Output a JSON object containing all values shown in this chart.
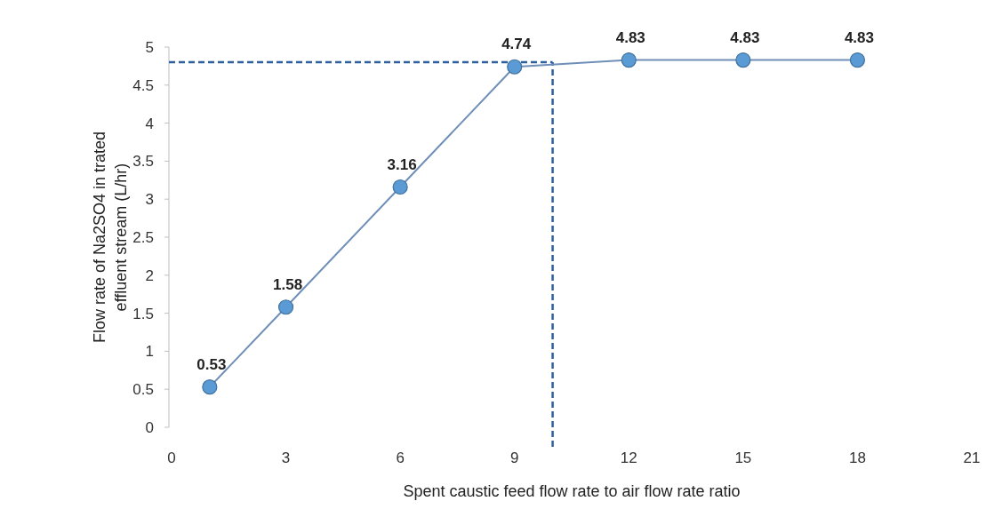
{
  "chart_data": {
    "type": "line",
    "xlabel": "Spent caustic feed flow rate to air flow rate ratio",
    "ylabel": "Flow rate of Na2SO4 in trated effluent stream (L/hr)",
    "x": [
      1,
      3,
      6,
      9,
      12,
      15,
      18
    ],
    "series": [
      {
        "color": "#5b9bd5",
        "values": [
          0.53,
          1.58,
          3.16,
          4.74,
          4.83,
          4.83,
          4.83
        ]
      }
    ],
    "xlim": [
      0,
      21
    ],
    "xticks": [
      0,
      3,
      6,
      9,
      12,
      15,
      18,
      21
    ],
    "ylim": [
      0,
      5
    ],
    "yticks": [
      0,
      0.5,
      1,
      1.5,
      2,
      2.5,
      3,
      3.5,
      4,
      4.5,
      5
    ],
    "marker": "circle",
    "data_labels": true,
    "grid": false,
    "ref_lines": [
      {
        "axis": "y",
        "value": 4.8,
        "color": "#2e5f9e",
        "line_style": "dashed"
      },
      {
        "axis": "x",
        "value": 10,
        "color": "#2e5f9e",
        "line_style": "dashed"
      }
    ]
  }
}
